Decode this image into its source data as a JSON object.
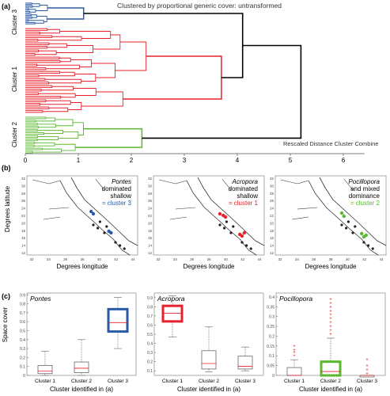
{
  "panel_a": {
    "label": "(a)",
    "title": "Clustered by proportional generic cover: untransformed",
    "axis_caption": "Rescaled Distance Cluster Combine",
    "cluster_labels": [
      "Cluster 3",
      "Cluster 1",
      "Cluster 2"
    ],
    "colors": {
      "cluster1": "#e8212a",
      "cluster2": "#59b82d",
      "cluster3": "#2a5aa6",
      "root": "#000000"
    }
  },
  "panel_b": {
    "label": "(b)",
    "ylabel": "Degrees latitude",
    "xlabel": "Degrees longitude",
    "ytick_labels": [
      "32",
      "30",
      "28",
      "26",
      "24",
      "22",
      "20",
      "18",
      "16",
      "14",
      "12"
    ],
    "xtick_labels": [
      "32",
      "34",
      "36",
      "38",
      "40",
      "42",
      "44"
    ],
    "maps": [
      {
        "genus": "Pontes",
        "lines": [
          "dominated",
          "shallow"
        ],
        "cluster_text": "= cluster 3",
        "color": "#2a5aa6"
      },
      {
        "genus": "Acropora",
        "lines": [
          "dominated",
          "shallow"
        ],
        "cluster_text": "= cluster 1",
        "color": "#e8212a"
      },
      {
        "genus": "Pocillopora",
        "lines": [
          "and mixed",
          "dominance"
        ],
        "cluster_text": "= cluster 2",
        "color": "#59b82d"
      }
    ]
  },
  "panel_c": {
    "label": "(c)",
    "ylabel": "Space cover",
    "xlabel": "Cluster identified in (a)",
    "categories": [
      "Cluster 1",
      "Cluster 2",
      "Cluster 3"
    ]
  },
  "chart_data": [
    {
      "type": "dendrogram",
      "title": "Clustered by proportional generic cover: untransformed",
      "xlabel": "Rescaled Distance Cluster Combine",
      "xticks": [
        0,
        1,
        2,
        3,
        4,
        5,
        6
      ],
      "xlim": [
        0,
        6.4
      ],
      "clusters": [
        {
          "name": "Cluster 3",
          "merge_distance": 1.1
        },
        {
          "name": "Cluster 1",
          "merge_distance": 3.7
        },
        {
          "name": "Cluster 2",
          "merge_distance": 2.2
        }
      ],
      "root_merge_distance": 5.2
    },
    {
      "type": "box",
      "title": "Pontes",
      "categories": [
        "Cluster 1",
        "Cluster 2",
        "Cluster 3"
      ],
      "yticks": [
        0,
        0.1,
        0.2,
        0.3,
        0.4,
        0.5,
        0.6,
        0.7,
        0.8,
        0.9
      ],
      "ylim": [
        0,
        0.92
      ],
      "boxes": [
        {
          "min": 0.0,
          "q1": 0.02,
          "median": 0.05,
          "q3": 0.11,
          "max": 0.27
        },
        {
          "min": 0.0,
          "q1": 0.03,
          "median": 0.08,
          "q3": 0.15,
          "max": 0.4
        },
        {
          "min": 0.3,
          "q1": 0.49,
          "median": 0.59,
          "q3": 0.74,
          "max": 0.87
        }
      ],
      "highlight": 2,
      "highlight_color": "#2a5aa6"
    },
    {
      "type": "box",
      "title": "Acropora",
      "categories": [
        "Cluster 1",
        "Cluster 2",
        "Cluster 3"
      ],
      "yticks": [
        0.1,
        0.2,
        0.3,
        0.4,
        0.5,
        0.6,
        0.7,
        0.8,
        0.9
      ],
      "ylim": [
        0.05,
        0.95
      ],
      "boxes": [
        {
          "min": 0.47,
          "q1": 0.64,
          "median": 0.73,
          "q3": 0.81,
          "max": 0.92
        },
        {
          "min": 0.09,
          "q1": 0.12,
          "median": 0.18,
          "q3": 0.32,
          "max": 0.58
        },
        {
          "min": 0.1,
          "q1": 0.12,
          "median": 0.15,
          "q3": 0.26,
          "max": 0.36
        }
      ],
      "highlight": 0,
      "highlight_color": "#e8212a"
    },
    {
      "type": "box",
      "title": "Pocillopora",
      "categories": [
        "Cluster 1",
        "Cluster 2",
        "Cluster 3"
      ],
      "yticks": [
        0,
        0.05,
        0.1,
        0.15,
        0.2,
        0.25,
        0.3,
        0.35,
        0.4
      ],
      "ylim": [
        0,
        0.42
      ],
      "boxes": [
        {
          "min": 0.0,
          "q1": 0.0,
          "median": 0.0,
          "q3": 0.04,
          "max": 0.08,
          "outliers": [
            0.1,
            0.12,
            0.13,
            0.15
          ]
        },
        {
          "min": 0.0,
          "q1": 0.0,
          "median": 0.02,
          "q3": 0.07,
          "max": 0.19,
          "outliers": [
            0.21,
            0.23,
            0.25,
            0.27,
            0.29,
            0.31,
            0.33,
            0.35,
            0.37,
            0.39
          ]
        },
        {
          "min": 0.0,
          "q1": 0.0,
          "median": 0.0,
          "q3": 0.0,
          "max": 0.0,
          "outliers": [
            0.01,
            0.03,
            0.05,
            0.08
          ]
        }
      ],
      "highlight": 1,
      "highlight_color": "#59b82d"
    }
  ]
}
